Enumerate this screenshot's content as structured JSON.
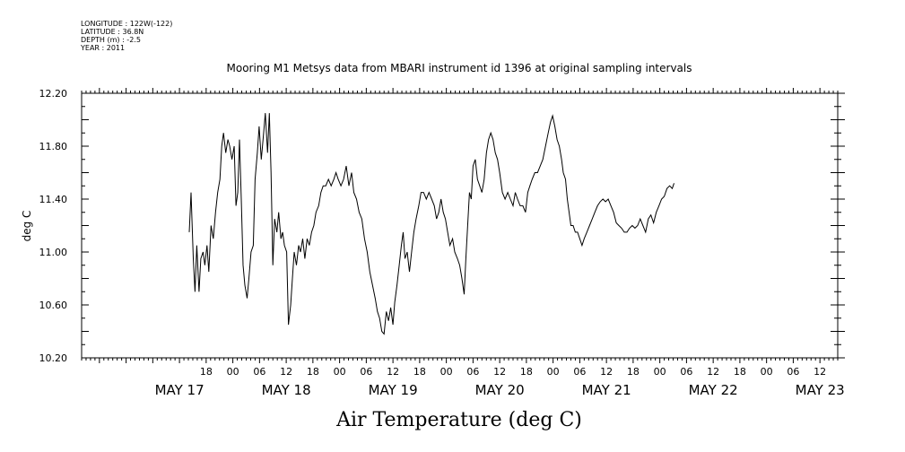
{
  "header_meta": {
    "longitude": "LONGITUDE : 122W(-122)",
    "latitude": "LATITUDE : 36.8N",
    "depth": "DEPTH (m) : -2.5",
    "year": "YEAR : 2011"
  },
  "chart_data": {
    "type": "line",
    "title": "Mooring M1 Metsys data from MBARI instrument id 1396 at original sampling intervals",
    "xlabel": "Air Temperature (deg C)",
    "ylabel": "deg C",
    "ylim": [
      10.2,
      12.2
    ],
    "xlim": [
      -10,
      160
    ],
    "x_units": "hours after 2011-05-17 00:00",
    "yticks": [
      10.2,
      10.6,
      11.0,
      11.4,
      11.8,
      12.2
    ],
    "ytick_labels": [
      "10.20",
      "10.60",
      "11.00",
      "11.40",
      "11.80",
      "12.20"
    ],
    "hour_ticks": [
      {
        "x": 18,
        "label": "18"
      },
      {
        "x": 24,
        "label": "00"
      },
      {
        "x": 30,
        "label": "06"
      },
      {
        "x": 36,
        "label": "12"
      },
      {
        "x": 42,
        "label": "18"
      },
      {
        "x": 48,
        "label": "00"
      },
      {
        "x": 54,
        "label": "06"
      },
      {
        "x": 60,
        "label": "12"
      },
      {
        "x": 66,
        "label": "18"
      },
      {
        "x": 72,
        "label": "00"
      },
      {
        "x": 78,
        "label": "06"
      },
      {
        "x": 84,
        "label": "12"
      },
      {
        "x": 90,
        "label": "18"
      },
      {
        "x": 96,
        "label": "00"
      },
      {
        "x": 102,
        "label": "06"
      },
      {
        "x": 108,
        "label": "12"
      },
      {
        "x": 114,
        "label": "18"
      },
      {
        "x": 120,
        "label": "00"
      },
      {
        "x": 126,
        "label": "06"
      },
      {
        "x": 132,
        "label": "12"
      },
      {
        "x": 138,
        "label": "18"
      },
      {
        "x": 144,
        "label": "00"
      },
      {
        "x": 150,
        "label": "06"
      },
      {
        "x": 156,
        "label": "12"
      },
      {
        "x": 162,
        "label": "18"
      },
      {
        "x": 168,
        "label": "00"
      }
    ],
    "day_labels": [
      {
        "x": 12,
        "label": "MAY 17"
      },
      {
        "x": 36,
        "label": "MAY 18"
      },
      {
        "x": 60,
        "label": "MAY 19"
      },
      {
        "x": 84,
        "label": "MAY 20"
      },
      {
        "x": 108,
        "label": "MAY 21"
      },
      {
        "x": 132,
        "label": "MAY 22"
      },
      {
        "x": 156,
        "label": "MAY 23"
      }
    ],
    "series": [
      {
        "color": "#000000",
        "points": [
          [
            14.2,
            11.15
          ],
          [
            14.6,
            11.45
          ],
          [
            15.1,
            10.95
          ],
          [
            15.5,
            10.7
          ],
          [
            15.9,
            11.05
          ],
          [
            16.4,
            10.7
          ],
          [
            16.8,
            10.95
          ],
          [
            17.3,
            11.0
          ],
          [
            17.7,
            10.9
          ],
          [
            18.2,
            11.05
          ],
          [
            18.6,
            10.85
          ],
          [
            19.1,
            11.2
          ],
          [
            19.6,
            11.1
          ],
          [
            20.1,
            11.3
          ],
          [
            20.6,
            11.45
          ],
          [
            21.1,
            11.55
          ],
          [
            21.5,
            11.8
          ],
          [
            21.9,
            11.9
          ],
          [
            22.4,
            11.75
          ],
          [
            22.9,
            11.85
          ],
          [
            23.3,
            11.8
          ],
          [
            23.8,
            11.7
          ],
          [
            24.3,
            11.8
          ],
          [
            24.7,
            11.35
          ],
          [
            25.1,
            11.45
          ],
          [
            25.5,
            11.85
          ],
          [
            25.9,
            11.4
          ],
          [
            26.3,
            10.9
          ],
          [
            26.7,
            10.75
          ],
          [
            27.2,
            10.65
          ],
          [
            27.6,
            10.8
          ],
          [
            28.1,
            11.0
          ],
          [
            28.6,
            11.05
          ],
          [
            29.0,
            11.55
          ],
          [
            29.5,
            11.75
          ],
          [
            29.9,
            11.95
          ],
          [
            30.4,
            11.7
          ],
          [
            30.8,
            11.85
          ],
          [
            31.3,
            12.05
          ],
          [
            31.8,
            11.75
          ],
          [
            32.2,
            12.05
          ],
          [
            32.6,
            11.6
          ],
          [
            33.0,
            10.9
          ],
          [
            33.4,
            11.25
          ],
          [
            33.9,
            11.15
          ],
          [
            34.3,
            11.3
          ],
          [
            34.8,
            11.1
          ],
          [
            35.2,
            11.15
          ],
          [
            35.6,
            11.05
          ],
          [
            36.1,
            11.0
          ],
          [
            36.5,
            10.45
          ],
          [
            37.0,
            10.6
          ],
          [
            37.4,
            10.8
          ],
          [
            37.8,
            11.0
          ],
          [
            38.3,
            10.9
          ],
          [
            38.8,
            11.05
          ],
          [
            39.2,
            11.0
          ],
          [
            39.7,
            11.1
          ],
          [
            40.2,
            10.95
          ],
          [
            40.7,
            11.1
          ],
          [
            41.2,
            11.05
          ],
          [
            41.7,
            11.15
          ],
          [
            42.2,
            11.2
          ],
          [
            42.7,
            11.3
          ],
          [
            43.3,
            11.35
          ],
          [
            43.8,
            11.45
          ],
          [
            44.3,
            11.5
          ],
          [
            44.9,
            11.5
          ],
          [
            45.5,
            11.55
          ],
          [
            46.1,
            11.5
          ],
          [
            46.7,
            11.55
          ],
          [
            47.2,
            11.6
          ],
          [
            47.7,
            11.55
          ],
          [
            48.3,
            11.5
          ],
          [
            48.9,
            11.55
          ],
          [
            49.5,
            11.65
          ],
          [
            50.1,
            11.5
          ],
          [
            50.7,
            11.6
          ],
          [
            51.2,
            11.45
          ],
          [
            51.8,
            11.4
          ],
          [
            52.4,
            11.3
          ],
          [
            53.0,
            11.25
          ],
          [
            53.6,
            11.1
          ],
          [
            54.2,
            11.0
          ],
          [
            54.8,
            10.85
          ],
          [
            55.4,
            10.75
          ],
          [
            56.0,
            10.65
          ],
          [
            56.5,
            10.55
          ],
          [
            57.0,
            10.5
          ],
          [
            57.5,
            10.4
          ],
          [
            58.0,
            10.38
          ],
          [
            58.5,
            10.55
          ],
          [
            59.0,
            10.48
          ],
          [
            59.5,
            10.58
          ],
          [
            60.0,
            10.45
          ],
          [
            60.4,
            10.62
          ],
          [
            60.9,
            10.75
          ],
          [
            61.4,
            10.9
          ],
          [
            61.9,
            11.05
          ],
          [
            62.3,
            11.15
          ],
          [
            62.7,
            10.95
          ],
          [
            63.2,
            11.0
          ],
          [
            63.7,
            10.85
          ],
          [
            64.2,
            11.0
          ],
          [
            64.7,
            11.15
          ],
          [
            65.2,
            11.25
          ],
          [
            65.8,
            11.35
          ],
          [
            66.3,
            11.45
          ],
          [
            66.9,
            11.45
          ],
          [
            67.5,
            11.4
          ],
          [
            68.1,
            11.45
          ],
          [
            68.7,
            11.4
          ],
          [
            69.3,
            11.35
          ],
          [
            69.8,
            11.25
          ],
          [
            70.3,
            11.3
          ],
          [
            70.8,
            11.4
          ],
          [
            71.3,
            11.3
          ],
          [
            71.8,
            11.25
          ],
          [
            72.3,
            11.15
          ],
          [
            72.8,
            11.05
          ],
          [
            73.4,
            11.1
          ],
          [
            73.9,
            11.0
          ],
          [
            74.5,
            10.95
          ],
          [
            75.0,
            10.9
          ],
          [
            75.5,
            10.8
          ],
          [
            76.0,
            10.68
          ],
          [
            76.4,
            10.95
          ],
          [
            76.8,
            11.2
          ],
          [
            77.2,
            11.45
          ],
          [
            77.6,
            11.4
          ],
          [
            78.0,
            11.65
          ],
          [
            78.5,
            11.7
          ],
          [
            79.0,
            11.55
          ],
          [
            79.5,
            11.5
          ],
          [
            80.0,
            11.45
          ],
          [
            80.5,
            11.55
          ],
          [
            81.0,
            11.75
          ],
          [
            81.5,
            11.85
          ],
          [
            82.0,
            11.9
          ],
          [
            82.5,
            11.85
          ],
          [
            83.0,
            11.75
          ],
          [
            83.5,
            11.7
          ],
          [
            84.0,
            11.6
          ],
          [
            84.6,
            11.45
          ],
          [
            85.2,
            11.4
          ],
          [
            85.8,
            11.45
          ],
          [
            86.4,
            11.4
          ],
          [
            87.0,
            11.35
          ],
          [
            87.5,
            11.45
          ],
          [
            88.0,
            11.4
          ],
          [
            88.6,
            11.35
          ],
          [
            89.2,
            11.35
          ],
          [
            89.8,
            11.3
          ],
          [
            90.3,
            11.45
          ],
          [
            90.8,
            11.5
          ],
          [
            91.3,
            11.55
          ],
          [
            91.9,
            11.6
          ],
          [
            92.5,
            11.6
          ],
          [
            93.1,
            11.65
          ],
          [
            93.7,
            11.7
          ],
          [
            94.3,
            11.8
          ],
          [
            94.9,
            11.9
          ],
          [
            95.4,
            11.98
          ],
          [
            95.9,
            12.03
          ],
          [
            96.4,
            11.95
          ],
          [
            96.9,
            11.85
          ],
          [
            97.4,
            11.8
          ],
          [
            97.9,
            11.7
          ],
          [
            98.3,
            11.6
          ],
          [
            98.8,
            11.55
          ],
          [
            99.2,
            11.4
          ],
          [
            99.6,
            11.3
          ],
          [
            100.0,
            11.2
          ],
          [
            100.5,
            11.2
          ],
          [
            101.0,
            11.15
          ],
          [
            101.5,
            11.15
          ],
          [
            102.0,
            11.1
          ],
          [
            102.5,
            11.05
          ],
          [
            103.0,
            11.1
          ],
          [
            103.6,
            11.15
          ],
          [
            104.2,
            11.2
          ],
          [
            104.8,
            11.25
          ],
          [
            105.4,
            11.3
          ],
          [
            106.0,
            11.35
          ],
          [
            106.6,
            11.38
          ],
          [
            107.2,
            11.4
          ],
          [
            107.8,
            11.38
          ],
          [
            108.4,
            11.4
          ],
          [
            109.0,
            11.35
          ],
          [
            109.6,
            11.3
          ],
          [
            110.2,
            11.22
          ],
          [
            110.8,
            11.2
          ],
          [
            111.4,
            11.18
          ],
          [
            112.0,
            11.15
          ],
          [
            112.6,
            11.15
          ],
          [
            113.2,
            11.18
          ],
          [
            113.8,
            11.2
          ],
          [
            114.4,
            11.18
          ],
          [
            115.0,
            11.2
          ],
          [
            115.6,
            11.25
          ],
          [
            116.2,
            11.2
          ],
          [
            116.8,
            11.15
          ],
          [
            117.4,
            11.25
          ],
          [
            118.0,
            11.28
          ],
          [
            118.6,
            11.22
          ],
          [
            119.2,
            11.3
          ],
          [
            119.8,
            11.35
          ],
          [
            120.4,
            11.4
          ],
          [
            121.0,
            11.42
          ],
          [
            121.6,
            11.48
          ],
          [
            122.2,
            11.5
          ],
          [
            122.8,
            11.48
          ],
          [
            123.2,
            11.52
          ]
        ]
      }
    ],
    "grid": false
  }
}
